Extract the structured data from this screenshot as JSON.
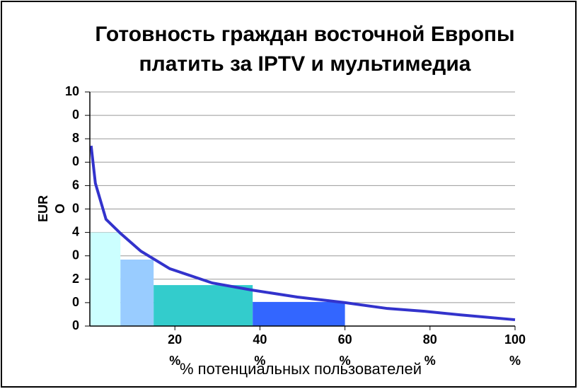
{
  "chart_data": {
    "type": "histogram",
    "title": "Готовность граждан восточной Европы платить за IPTV и мультимедиа",
    "xlabel": "% потенциальных пользователей",
    "ylabel": "EURO",
    "bins": [
      0,
      7.2,
      15,
      38.3,
      60
    ],
    "values": [
      40,
      28.4,
      17.5,
      10.3
    ],
    "colors": [
      "#ccffff",
      "#99ccff",
      "#33cccc",
      "#3366ff"
    ],
    "line": {
      "x": [
        0.3,
        1.3,
        3.8,
        7.2,
        12,
        18.8,
        28.8,
        38,
        48.8,
        60,
        70,
        78.7,
        87,
        100
      ],
      "values": [
        77,
        61,
        45.6,
        39.6,
        32,
        24.5,
        18.4,
        15.4,
        12.4,
        10,
        7.5,
        6.3,
        4.8,
        2.7
      ],
      "color": "#3333cc"
    },
    "xlim": [
      0,
      100
    ],
    "ylim": [
      0,
      100
    ],
    "xticks": [
      {
        "value": 20,
        "label": "20%"
      },
      {
        "value": 40,
        "label": "40%"
      },
      {
        "value": 60,
        "label": "60%"
      },
      {
        "value": 80,
        "label": "80%"
      },
      {
        "value": 100,
        "label": "100%"
      }
    ],
    "yticks": [
      0,
      20,
      40,
      60,
      80,
      100
    ],
    "minor_yticks": [
      10,
      30,
      50,
      70,
      90
    ],
    "grid": true
  }
}
